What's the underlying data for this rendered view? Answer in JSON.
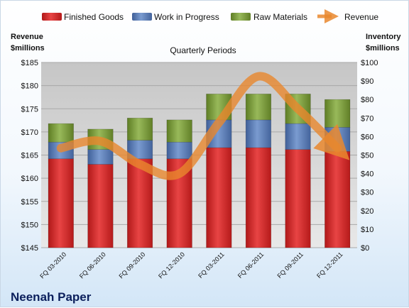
{
  "company": "Neenah Paper",
  "chart_data": {
    "type": "bar",
    "stacked": true,
    "subtitle": "Quarterly Periods",
    "categories": [
      "FQ 03-2010",
      "FQ 06-2010",
      "FQ 09-2010",
      "FQ 12-2010",
      "FQ 03-2011",
      "FQ 06-2011",
      "FQ 09-2011",
      "FQ 12-2011"
    ],
    "left_axis": {
      "title_line1": "Revenue",
      "title_line2": "$millions",
      "range": [
        145,
        185
      ],
      "ticks": [
        "$145",
        "$150",
        "$155",
        "$160",
        "$165",
        "$170",
        "$175",
        "$180",
        "$185"
      ]
    },
    "right_axis": {
      "title_line1": "Inventory",
      "title_line2": "$millions",
      "range": [
        0,
        100
      ],
      "ticks": [
        "$0",
        "$10",
        "$20",
        "$30",
        "$40",
        "$50",
        "$60",
        "$70",
        "$80",
        "$90",
        "$100"
      ]
    },
    "series": [
      {
        "name": "Finished Goods",
        "axis": "right",
        "color": "#d42a2a",
        "values": [
          48,
          45,
          48,
          48,
          54,
          54,
          53,
          52
        ]
      },
      {
        "name": "Work in Progress",
        "axis": "right",
        "color": "#5b7fb8",
        "values": [
          9,
          8,
          10,
          9,
          15,
          15,
          14,
          13
        ]
      },
      {
        "name": "Raw Materials",
        "axis": "right",
        "color": "#7a9a3a",
        "values": [
          10,
          11,
          12,
          12,
          14,
          14,
          16,
          15
        ]
      }
    ],
    "line_series": {
      "name": "Revenue",
      "axis": "left",
      "color": "#e9872d",
      "values": [
        166.5,
        168.0,
        163.0,
        161.0,
        172.0,
        182.0,
        175.0,
        166.5
      ]
    },
    "legend_position": "top",
    "grid": true
  }
}
